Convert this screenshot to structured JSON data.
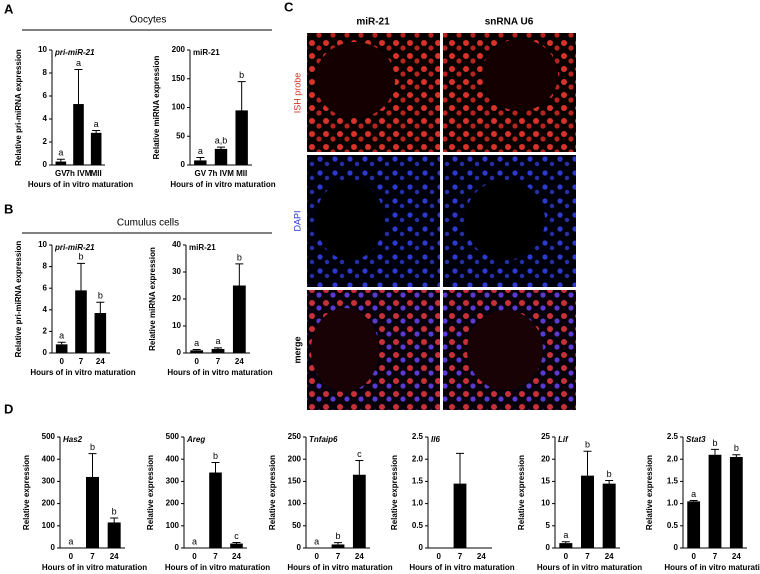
{
  "panels": {
    "a": "A",
    "b": "B",
    "c": "C",
    "d": "D"
  },
  "headings": {
    "oocytes": "Oocytes",
    "cumulus": "Cumulus cells"
  },
  "images": {
    "columns": [
      "miR-21",
      "snRNA U6"
    ],
    "rows": [
      "ISH probe",
      "DAPI",
      "merge"
    ]
  },
  "chart_data": [
    {
      "type": "bar",
      "title": "pri-miR-21",
      "ylabel": "Relative pri-miRNA expression",
      "xlabel": "Hours of in vitro maturation",
      "categories": [
        "GV",
        "7h IVM",
        "MII"
      ],
      "values": [
        0.3,
        5.3,
        2.8
      ],
      "errors": [
        0.2,
        3.0,
        0.2
      ],
      "letters": [
        "a",
        "a",
        "a"
      ],
      "ylim": [
        0,
        10
      ],
      "yticks": [
        0,
        2,
        4,
        6,
        8,
        10
      ],
      "color": "#000000"
    },
    {
      "type": "bar",
      "title": "miR-21",
      "ylabel": "Relative miRNA expression",
      "xlabel": "Hours of in vitro maturation",
      "categories": [
        "GV",
        "7h IVM",
        "MII"
      ],
      "values": [
        8,
        28,
        95
      ],
      "errors": [
        5,
        3,
        50
      ],
      "letters": [
        "a",
        "a,b",
        "b"
      ],
      "ylim": [
        0,
        200
      ],
      "yticks": [
        0,
        50,
        100,
        150,
        200
      ],
      "color": "#000000"
    },
    {
      "type": "bar",
      "title": "pri-miR-21",
      "ylabel": "Relative pri-miRNA expression",
      "xlabel": "Hours of in vitro maturation",
      "categories": [
        "0",
        "7",
        "24"
      ],
      "values": [
        0.8,
        5.8,
        3.7
      ],
      "errors": [
        0.2,
        2.5,
        1.0
      ],
      "letters": [
        "a",
        "b",
        "b"
      ],
      "ylim": [
        0,
        10
      ],
      "yticks": [
        0,
        2,
        4,
        6,
        8,
        10
      ],
      "color": "#000000"
    },
    {
      "type": "bar",
      "title": "miR-21",
      "ylabel": "Relative miRNA expression",
      "xlabel": "Hours of in vitro maturation",
      "categories": [
        "0",
        "7",
        "24"
      ],
      "values": [
        1,
        1.5,
        25
      ],
      "errors": [
        0.3,
        0.4,
        8
      ],
      "letters": [
        "a",
        "a",
        "b"
      ],
      "ylim": [
        0,
        40
      ],
      "yticks": [
        0,
        10,
        20,
        30,
        40
      ],
      "color": "#000000"
    },
    {
      "type": "bar",
      "title": "Has2",
      "ylabel": "Relative expression",
      "xlabel": "Hours of in vitro maturation",
      "categories": [
        "0",
        "7",
        "24"
      ],
      "values": [
        0,
        320,
        115
      ],
      "errors": [
        0,
        105,
        20
      ],
      "letters": [
        "a",
        "b",
        "b"
      ],
      "ylim": [
        0,
        500
      ],
      "yticks": [
        0,
        100,
        200,
        300,
        400,
        500
      ],
      "color": "#000000"
    },
    {
      "type": "bar",
      "title": "Areg",
      "ylabel": "Relative expression",
      "xlabel": "Hours of in vitro maturation",
      "categories": [
        "0",
        "7",
        "24"
      ],
      "values": [
        0,
        340,
        20
      ],
      "errors": [
        0,
        45,
        5
      ],
      "letters": [
        "a",
        "b",
        "c"
      ],
      "ylim": [
        0,
        500
      ],
      "yticks": [
        0,
        100,
        200,
        300,
        400,
        500
      ],
      "color": "#000000"
    },
    {
      "type": "bar",
      "title": "Tnfaip6",
      "ylabel": "Relative expression",
      "xlabel": "Hours of in vitro maturation",
      "categories": [
        "0",
        "7",
        "24"
      ],
      "values": [
        0,
        8,
        165
      ],
      "errors": [
        0,
        4,
        32
      ],
      "letters": [
        "a",
        "b",
        "c"
      ],
      "ylim": [
        0,
        250
      ],
      "yticks": [
        0,
        50,
        100,
        150,
        200,
        250
      ],
      "color": "#000000"
    },
    {
      "type": "bar",
      "title": "Il6",
      "ylabel": "Relative expression",
      "xlabel": "Hours of in vitro maturation",
      "categories": [
        "0",
        "7",
        "24"
      ],
      "values": [
        0,
        1.45,
        0
      ],
      "errors": [
        0,
        0.68,
        0
      ],
      "ylim": [
        0,
        2.5
      ],
      "yticks": [
        0,
        0.5,
        {
          "value": 1,
          "label": "1.0"
        },
        1.5,
        {
          "value": 2,
          "label": "2.0"
        },
        2.5
      ],
      "color": "#000000"
    },
    {
      "type": "bar",
      "title": "Lif",
      "ylabel": "Relative expression",
      "xlabel": "Hours of in vitro maturation",
      "categories": [
        "0",
        "7",
        "24"
      ],
      "values": [
        1.1,
        16.3,
        14.5
      ],
      "errors": [
        0.3,
        5.5,
        0.7
      ],
      "letters": [
        "a",
        "b",
        "b"
      ],
      "ylim": [
        0,
        25
      ],
      "yticks": [
        0,
        5,
        10,
        15,
        20,
        25
      ],
      "color": "#000000"
    },
    {
      "type": "bar",
      "title": "Stat3",
      "ylabel": "Relative expression",
      "xlabel": "Hours of in vitro maturation",
      "categories": [
        "0",
        "7",
        "24"
      ],
      "values": [
        1.05,
        2.1,
        2.05
      ],
      "errors": [
        0.02,
        0.12,
        0.05
      ],
      "letters": [
        "a",
        "b",
        "b"
      ],
      "ylim": [
        0,
        2.5
      ],
      "yticks": [
        0,
        0.5,
        {
          "value": 1,
          "label": "1.0"
        },
        1.5,
        {
          "value": 2,
          "label": "2.0"
        },
        2.5
      ],
      "color": "#000000"
    }
  ]
}
